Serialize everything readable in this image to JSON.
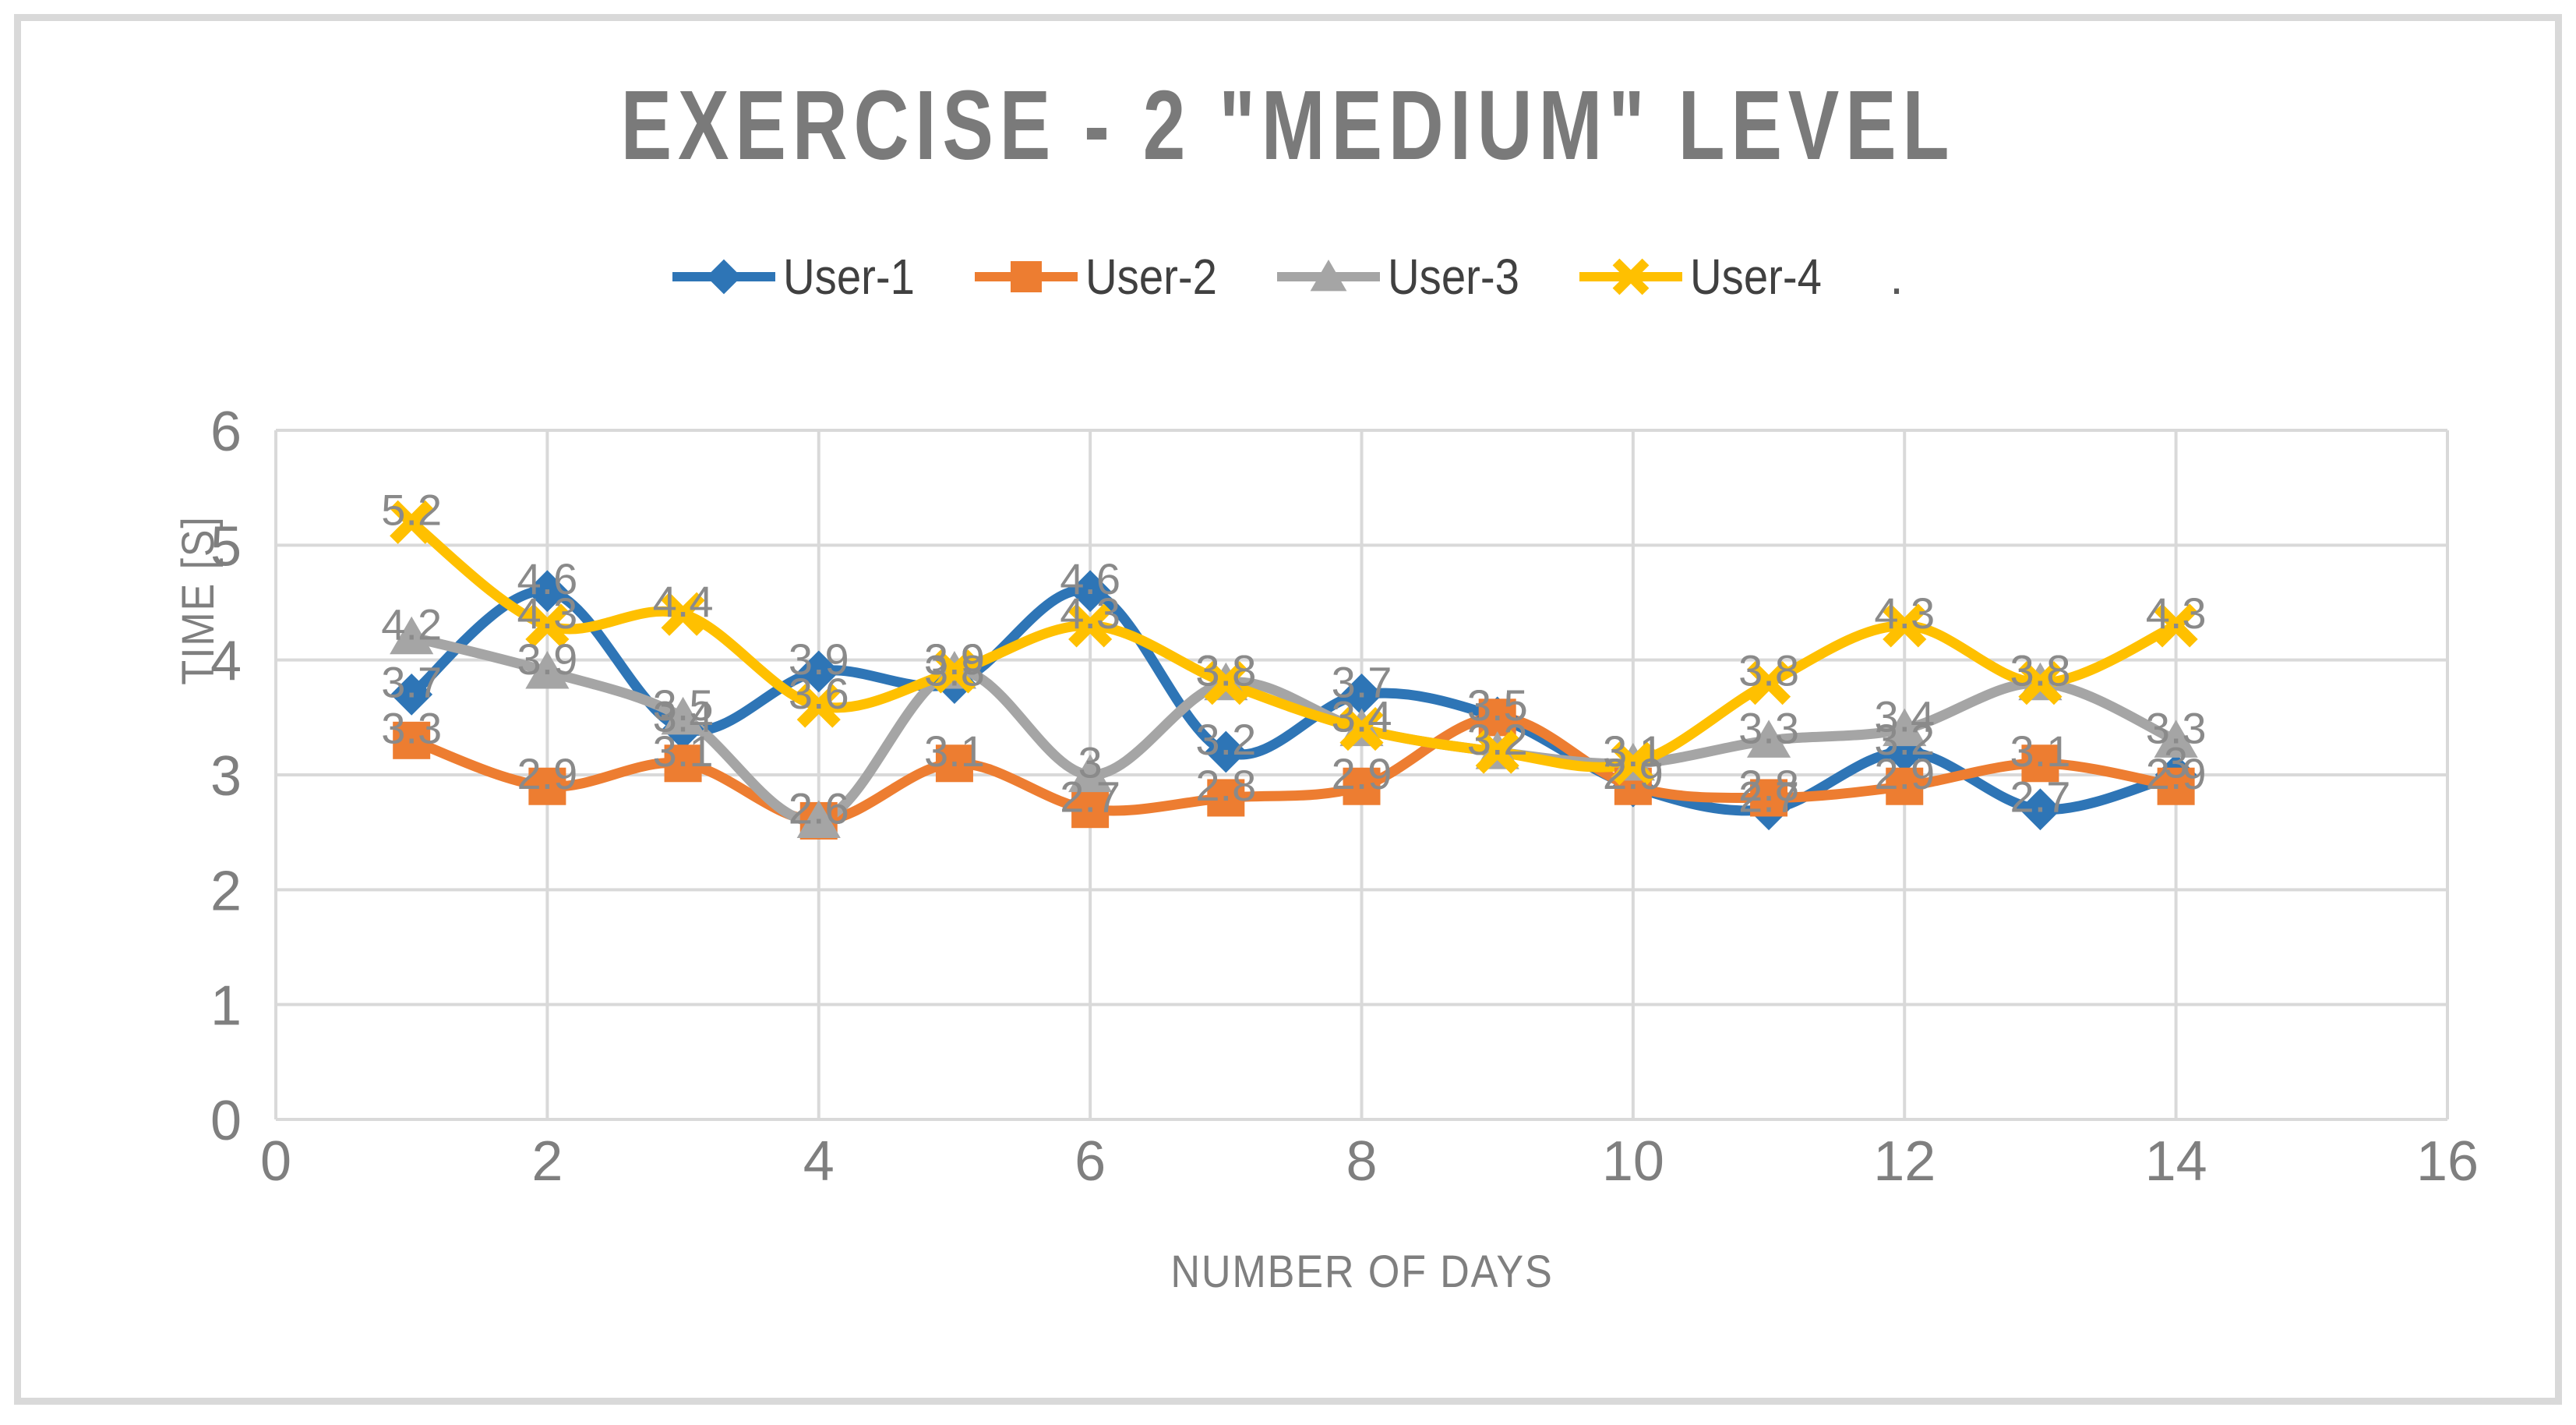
{
  "chart_data": {
    "type": "line",
    "smooth": true,
    "title": "EXERCISE - 2 \"MEDIUM\" LEVEL",
    "xlabel": "NUMBER OF DAYS",
    "ylabel": "TIME [S]",
    "x": [
      1,
      2,
      3,
      4,
      5,
      6,
      7,
      8,
      9,
      10,
      11,
      12,
      13,
      14
    ],
    "series": [
      {
        "name": "User-1",
        "color": "#2E75B6",
        "marker": "diamond",
        "values": [
          3.7,
          4.6,
          3.4,
          3.9,
          3.8,
          4.6,
          3.2,
          3.7,
          3.5,
          2.9,
          2.7,
          3.2,
          2.7,
          3.0
        ]
      },
      {
        "name": "User-2",
        "color": "#ED7D31",
        "marker": "square",
        "values": [
          3.3,
          2.9,
          3.1,
          2.6,
          3.1,
          2.7,
          2.8,
          2.9,
          3.5,
          2.9,
          2.8,
          2.9,
          3.1,
          2.9
        ]
      },
      {
        "name": "User-3",
        "color": "#A5A5A5",
        "marker": "triangle",
        "values": [
          4.2,
          3.9,
          3.5,
          2.6,
          3.9,
          3.0,
          3.8,
          3.4,
          3.2,
          3.1,
          3.3,
          3.4,
          3.8,
          3.3
        ]
      },
      {
        "name": "User-4",
        "color": "#FFC000",
        "marker": "x",
        "values": [
          5.2,
          4.3,
          4.4,
          3.6,
          3.9,
          4.3,
          3.8,
          3.4,
          3.2,
          3.1,
          3.8,
          4.3,
          3.8,
          4.3
        ]
      }
    ],
    "xlim": [
      0,
      16
    ],
    "ylim": [
      0,
      6
    ],
    "x_ticks": [
      0,
      2,
      4,
      6,
      8,
      10,
      12,
      14,
      16
    ],
    "y_ticks": [
      0,
      1,
      2,
      3,
      4,
      5,
      6
    ],
    "grid": true,
    "legend_position": "top",
    "data_labels": true
  },
  "legend_trailing_dot": ".",
  "styles": {
    "background": "#FFFFFF",
    "frame_border": "#D9D9D9",
    "gridline": "#D9D9D9",
    "axis_text": "#7F7F7F",
    "title_color": "#7A7A7A",
    "data_label_color": "#8A8A8A",
    "legend_text_color": "#404040"
  }
}
